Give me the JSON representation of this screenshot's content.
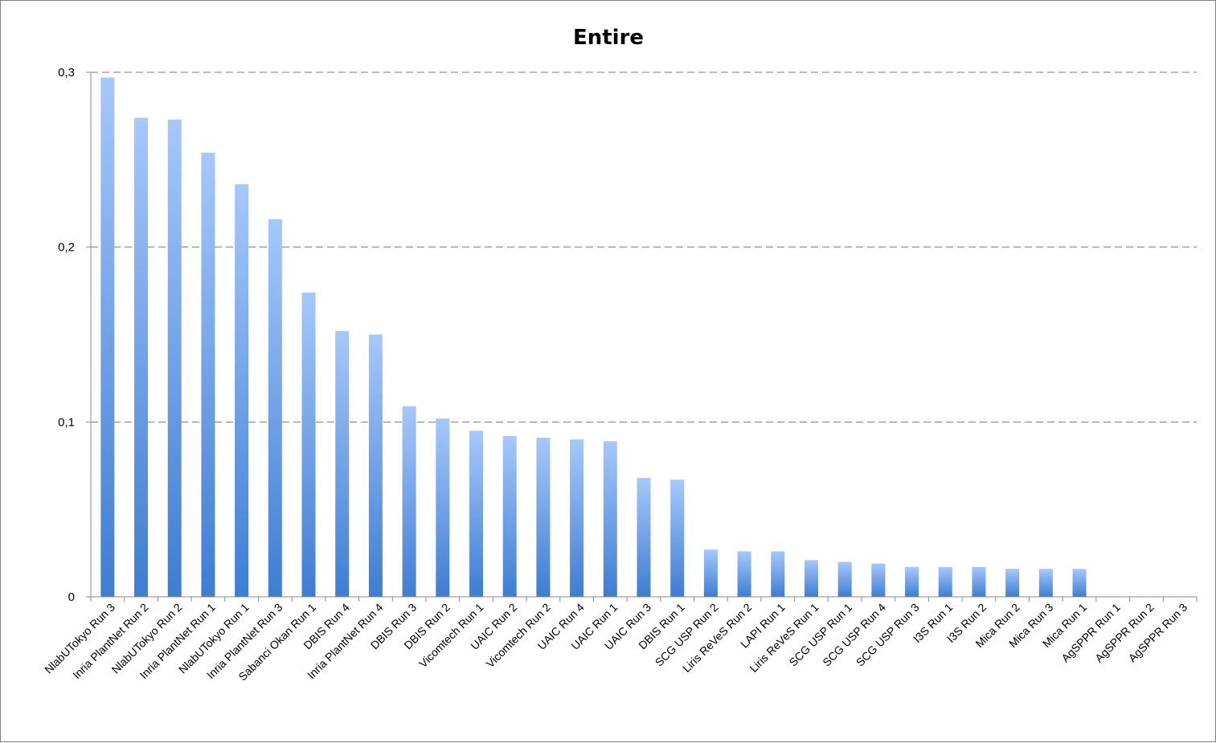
{
  "colors": {
    "bar_top": "#a6c8fb",
    "bar_bottom": "#3e7dd2",
    "grid": "#7a7a7a",
    "axis": "#888888",
    "border": "#7f7f7f"
  },
  "chart_data": {
    "type": "bar",
    "title": "Entire",
    "xlabel": "",
    "ylabel": "",
    "ylim": [
      0,
      0.3
    ],
    "yticks": [
      0,
      0.1,
      0.2,
      0.3
    ],
    "ytick_labels": [
      "0",
      "0,1",
      "0,2",
      "0,3"
    ],
    "grid": "horizontal dashed",
    "legend": "none",
    "categories": [
      "NlabUTokyo Run 3",
      "Inria PlantNet Run 2",
      "NlabUTokyo Run 2",
      "Inria PlantNet Run 1",
      "NlabUTokyo Run 1",
      "Inria PlantNet Run 3",
      "Sabanci Okan Run 1",
      "DBIS Run 4",
      "Inria PlantNet Run 4",
      "DBIS Run 3",
      "DBIS Run 2",
      "Vicomtech Run 1",
      "UAIC Run 2",
      "Vicomtech Run 2",
      "UAIC Run 4",
      "UAIC Run 1",
      "UAIC Run 3",
      "DBIS Run 1",
      "SCG USP Run 2",
      "Liris ReVeS Run 2",
      "LAPI Run 1",
      "Liris ReVeS Run 1",
      "SCG USP Run 1",
      "SCG USP Run 4",
      "SCG USP Run 3",
      "I3S Run 1",
      "I3S Run 2",
      "Mica Run 2",
      "Mica Run 3",
      "Mica Run 1",
      "AgSPPR Run 1",
      "AgSPPR Run 2",
      "AgSPPR Run 3"
    ],
    "values": [
      0.297,
      0.274,
      0.273,
      0.254,
      0.236,
      0.216,
      0.174,
      0.152,
      0.15,
      0.109,
      0.102,
      0.095,
      0.092,
      0.091,
      0.09,
      0.089,
      0.068,
      0.067,
      0.027,
      0.026,
      0.026,
      0.021,
      0.02,
      0.019,
      0.017,
      0.017,
      0.017,
      0.016,
      0.016,
      0.016,
      0,
      0,
      0
    ]
  }
}
